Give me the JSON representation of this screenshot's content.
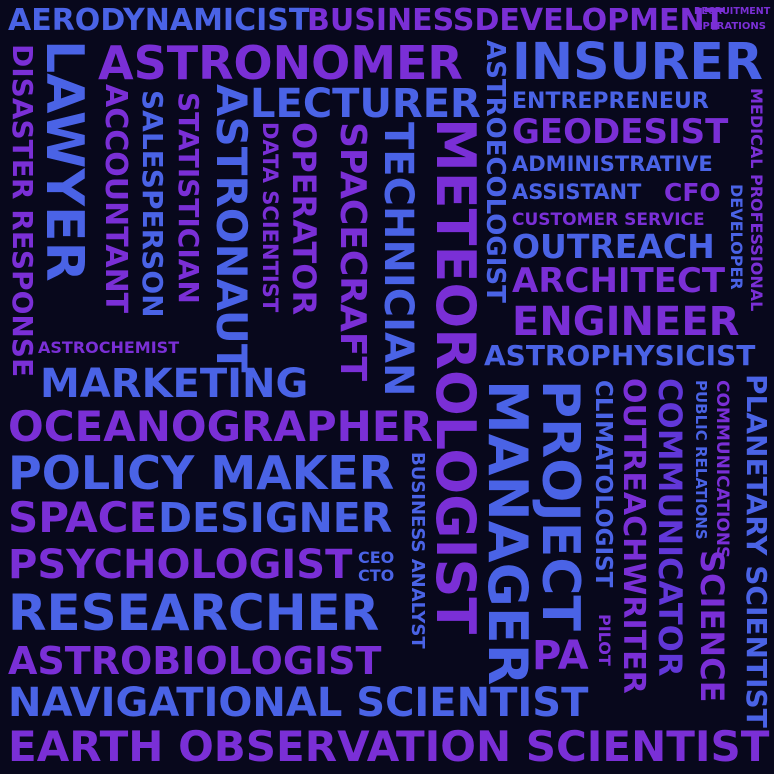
{
  "words": {
    "aerodynamicist": "AERODYNAMICIST",
    "business_development": "BUSINESSDEVELOPMENT",
    "recruitment": "RECRUITMENT",
    "operations": "OPERATIONS",
    "disaster_response": "DISASTER RESPONSE",
    "lawyer": "LAWYER",
    "astronomer": "ASTRONOMER",
    "astroecologist": "ASTROECOLOGIST",
    "insurer": "INSURER",
    "accountant": "ACCOUNTANT",
    "salesperson": "SALESPERSON",
    "statistician": "STATISTICIAN",
    "astronaut": "ASTRONAUT",
    "lecturer": "LECTURER",
    "data_scientist": "DATA SCIENTIST",
    "operator": "OPERATOR",
    "spacecraft": "SPACECRAFT",
    "technician": "TECHNICIAN",
    "meteorologist": "METEOROLOGIST",
    "entrepreneur": "ENTREPRENEUR",
    "medical_professional": "MEDICAL PROFESSIONAL",
    "geodesist": "GEODESIST",
    "administrative": "ADMINISTRATIVE",
    "assistant": "ASSISTANT",
    "cfo": "CFO",
    "developer": "DEVELOPER",
    "customer_service": "CUSTOMER SERVICE",
    "outreach": "OUTREACH",
    "architect": "ARCHITECT",
    "engineer": "ENGINEER",
    "astrochemist": "ASTROCHEMIST",
    "astrophysicist": "ASTROPHYSICIST",
    "marketing": "MARKETING",
    "oceanographer": "OCEANOGRAPHER",
    "policy_maker": "POLICY MAKER",
    "business_analyst": "BUSINESS ANALYST",
    "manager": "MANAGER",
    "project": "PROJECT",
    "climatologist": "CLIMATOLOGIST",
    "outreachwriter": "OUTREACHWRITER",
    "communicator": "COMMUNICATOR",
    "public_relations": "PUBLIC RELATIONS",
    "communications": "COMMUNICATIONS",
    "planetary_scientist": "PLANETARY SCIENTIST",
    "space": "SPACE",
    "designer": "DESIGNER",
    "psychologist": "PSYCHOLOGIST",
    "ceo": "CEO",
    "cto": "CTO",
    "researcher": "RESEARCHER",
    "pilot": "PILOT",
    "pa": "PA",
    "science": "SCIENCE",
    "astrobiologist": "ASTROBIOLOGIST",
    "navigational_scientist": "NAVIGATIONAL SCIENTIST",
    "earth_observation_scientist": "EARTH OBSERVATION SCIENTIST"
  },
  "colors": {
    "background": "#08081c",
    "blue": "#4a63e6",
    "purple": "#7a2fd6",
    "violet": "#6137d8"
  }
}
